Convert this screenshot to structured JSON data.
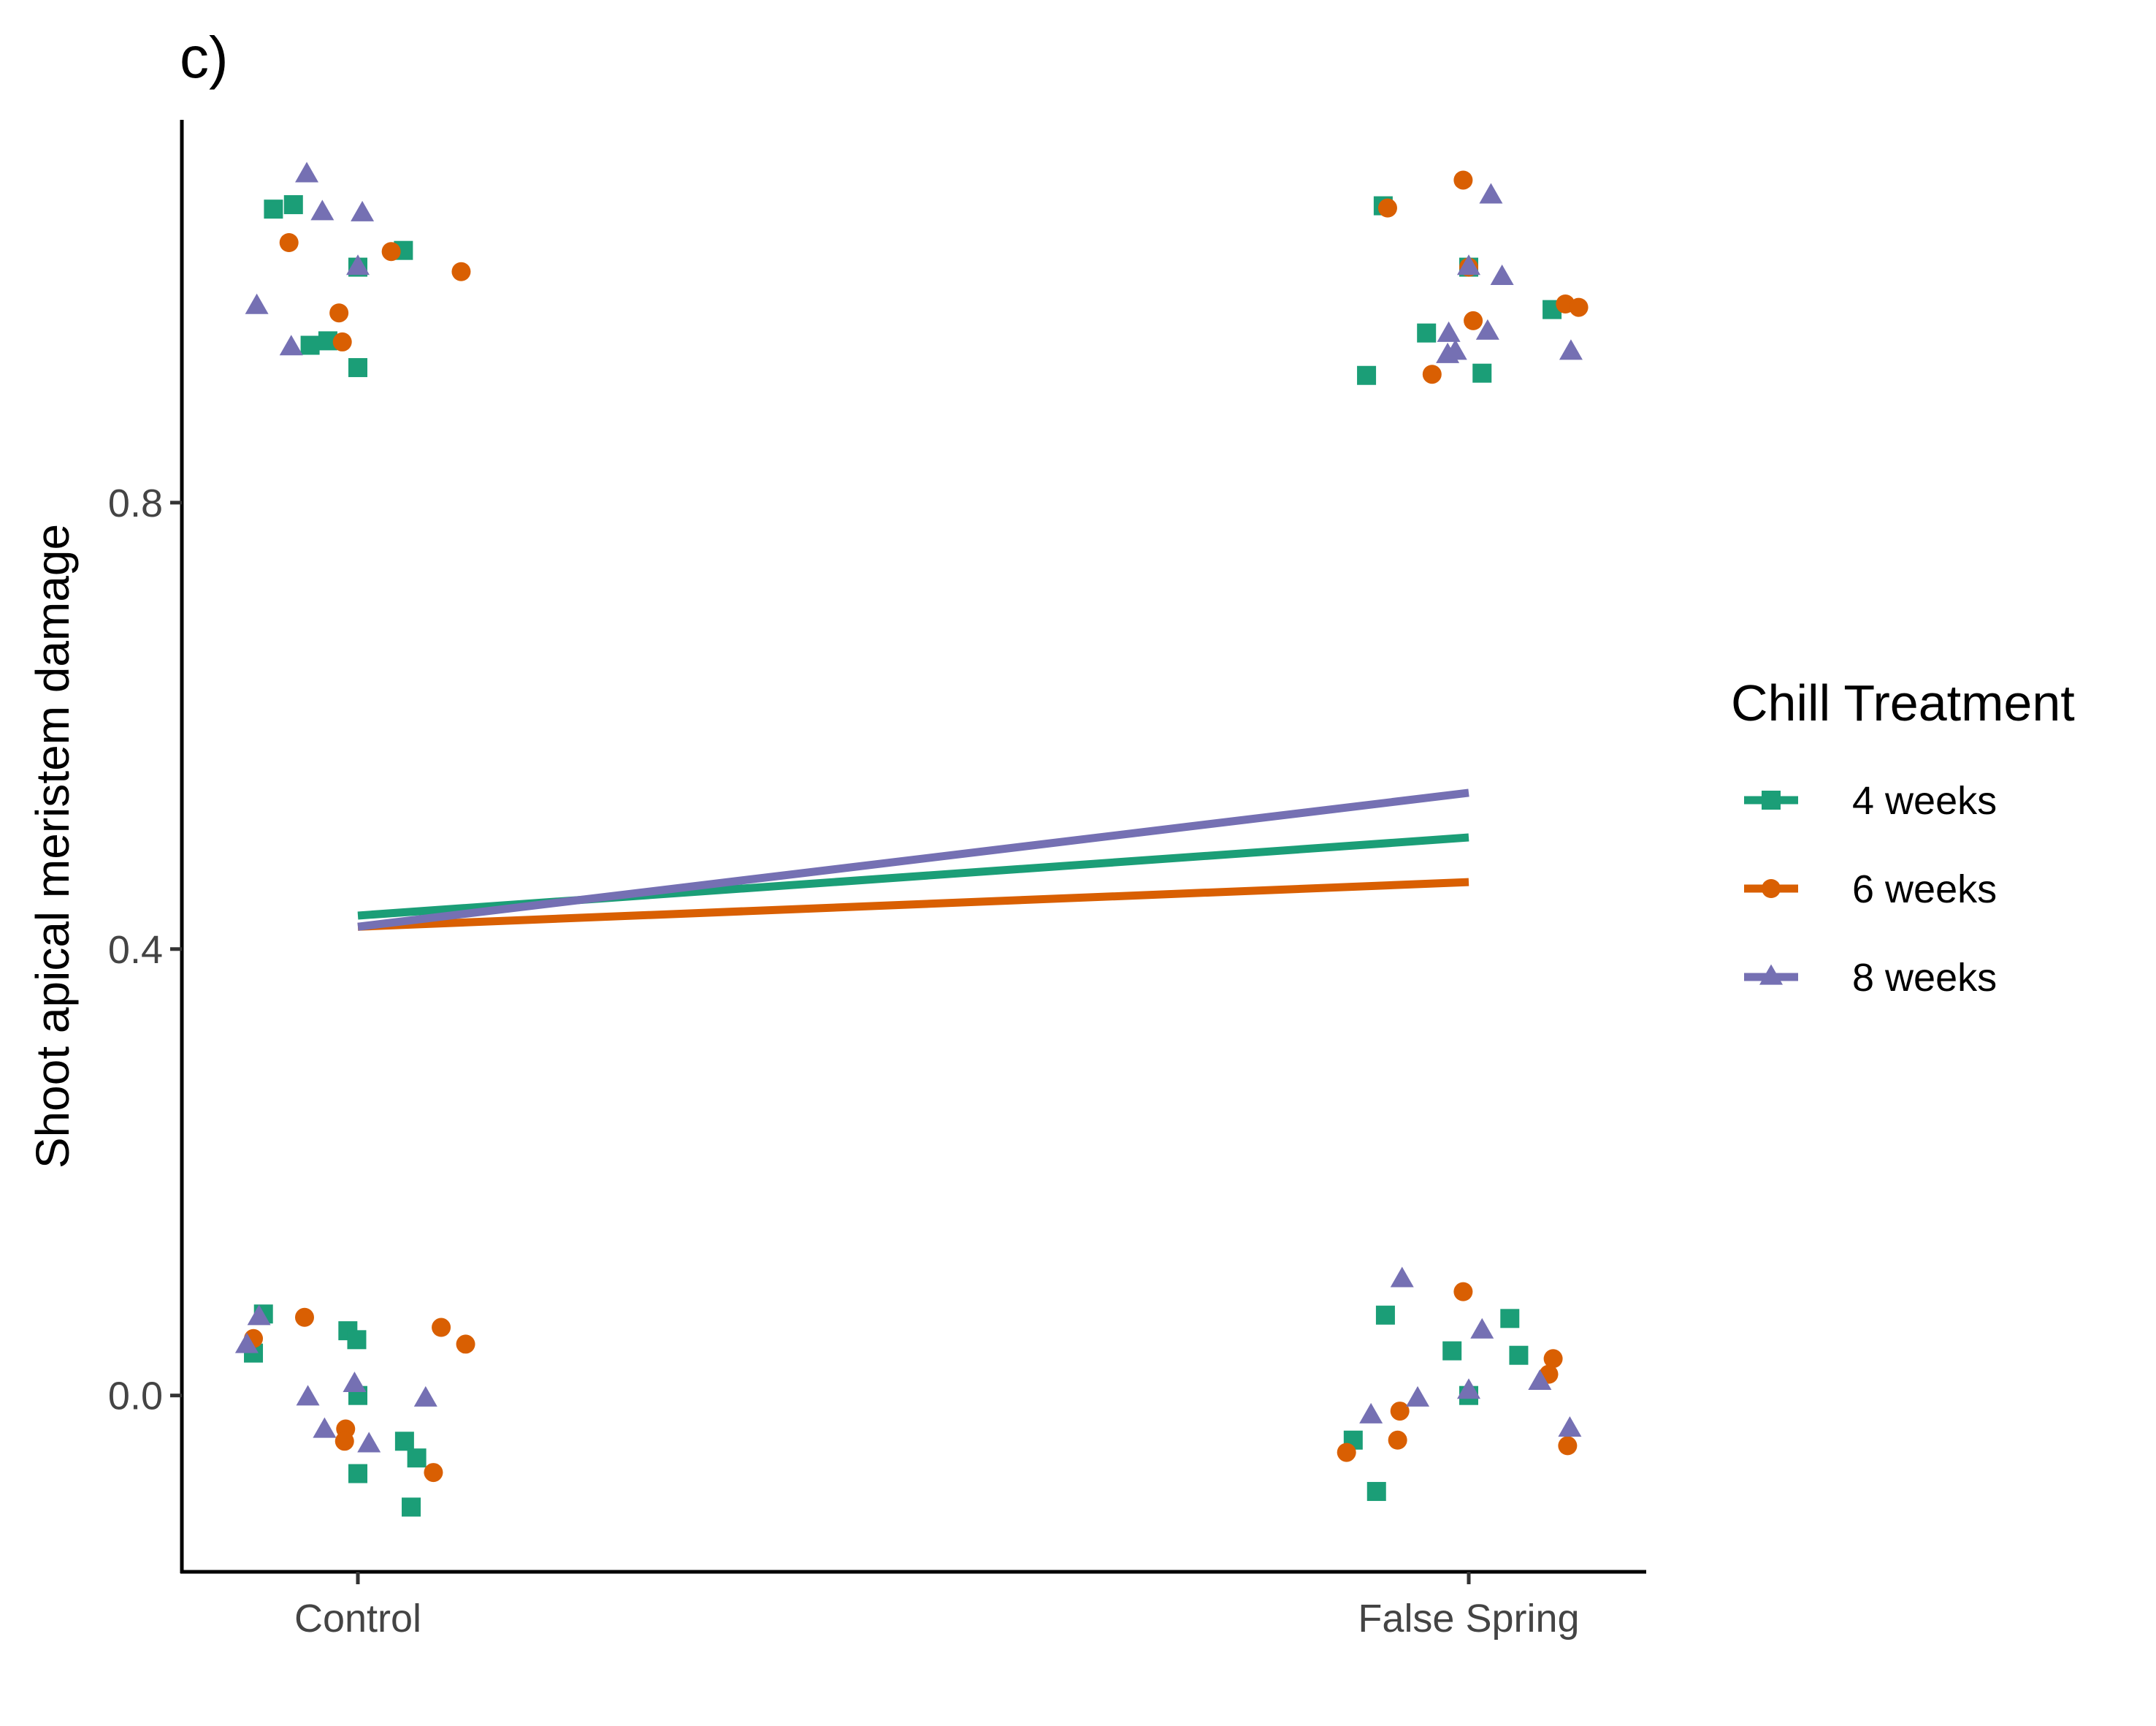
{
  "panel_label": "c)",
  "colors": {
    "4 weeks": "#1b9e77",
    "6 weeks": "#d95f02",
    "8 weeks": "#7570b3"
  },
  "legend": {
    "title": "Chill Treatment",
    "items": [
      {
        "label": "4 weeks",
        "shape": "square",
        "color": "#1b9e77"
      },
      {
        "label": "6 weeks",
        "shape": "circle",
        "color": "#d95f02"
      },
      {
        "label": "8 weeks",
        "shape": "triangle",
        "color": "#7570b3"
      }
    ]
  },
  "chart_data": {
    "type": "scatter",
    "title": "",
    "xlabel": "",
    "ylabel": "Shoot apical meristem damage",
    "categories": [
      "Control",
      "False Spring"
    ],
    "ylim": [
      -0.158,
      1.143
    ],
    "yticks": [
      0.0,
      0.4,
      0.8
    ],
    "ytick_labels": [
      "0.0",
      "0.4",
      "0.8"
    ],
    "grid": false,
    "legend_position": "right",
    "trend_lines": [
      {
        "name": "4 weeks",
        "values": [
          0.43,
          0.5
        ]
      },
      {
        "name": "6 weeks",
        "values": [
          0.42,
          0.46
        ]
      },
      {
        "name": "8 weeks",
        "values": [
          0.42,
          0.54
        ]
      }
    ],
    "series": [
      {
        "name": "4 weeks",
        "points": [
          {
            "x": -0.076,
            "y": 1.063
          },
          {
            "x": -0.058,
            "y": 1.067
          },
          {
            "x": -0.043,
            "y": 0.941
          },
          {
            "x": -0.027,
            "y": 0.945
          },
          {
            "x": 0.0,
            "y": 0.921
          },
          {
            "x": 0.0,
            "y": 1.011
          },
          {
            "x": 0.041,
            "y": 1.026
          },
          {
            "x": -0.094,
            "y": 0.038
          },
          {
            "x": -0.085,
            "y": 0.073
          },
          {
            "x": -0.009,
            "y": 0.058
          },
          {
            "x": -0.001,
            "y": 0.05
          },
          {
            "x": 0.0,
            "y": 0.0
          },
          {
            "x": 0.0,
            "y": -0.07
          },
          {
            "x": 0.042,
            "y": -0.041
          },
          {
            "x": 0.053,
            "y": -0.056
          },
          {
            "x": 0.048,
            "y": -0.1
          },
          {
            "x": 0.923,
            "y": 1.066
          },
          {
            "x": 0.962,
            "y": 0.952
          },
          {
            "x": 1.0,
            "y": 1.011
          },
          {
            "x": 0.908,
            "y": 0.914
          },
          {
            "x": 1.012,
            "y": 0.916
          },
          {
            "x": 1.075,
            "y": 0.973
          },
          {
            "x": 0.925,
            "y": 0.072
          },
          {
            "x": 0.985,
            "y": 0.04
          },
          {
            "x": 1.037,
            "y": 0.069
          },
          {
            "x": 1.045,
            "y": 0.036
          },
          {
            "x": 1.0,
            "y": 0.0
          },
          {
            "x": 0.896,
            "y": -0.04
          },
          {
            "x": 0.917,
            "y": -0.086
          }
        ]
      },
      {
        "name": "6 weeks",
        "points": [
          {
            "x": -0.062,
            "y": 1.033
          },
          {
            "x": 0.03,
            "y": 1.025
          },
          {
            "x": 0.093,
            "y": 1.007
          },
          {
            "x": -0.017,
            "y": 0.97
          },
          {
            "x": -0.014,
            "y": 0.944
          },
          {
            "x": -0.094,
            "y": 0.051
          },
          {
            "x": -0.048,
            "y": 0.07
          },
          {
            "x": 0.075,
            "y": 0.061
          },
          {
            "x": 0.097,
            "y": 0.046
          },
          {
            "x": -0.011,
            "y": -0.03
          },
          {
            "x": -0.012,
            "y": -0.041
          },
          {
            "x": 0.068,
            "y": -0.069
          },
          {
            "x": 0.995,
            "y": 1.089
          },
          {
            "x": 0.927,
            "y": 1.064
          },
          {
            "x": 1.0,
            "y": 1.011
          },
          {
            "x": 1.004,
            "y": 0.963
          },
          {
            "x": 0.967,
            "y": 0.915
          },
          {
            "x": 1.087,
            "y": 0.978
          },
          {
            "x": 1.099,
            "y": 0.975
          },
          {
            "x": 0.995,
            "y": 0.093
          },
          {
            "x": 1.076,
            "y": 0.033
          },
          {
            "x": 1.072,
            "y": 0.019
          },
          {
            "x": 0.938,
            "y": -0.014
          },
          {
            "x": 0.89,
            "y": -0.051
          },
          {
            "x": 0.936,
            "y": -0.04
          },
          {
            "x": 1.089,
            "y": -0.045
          }
        ]
      },
      {
        "name": "8 weeks",
        "points": [
          {
            "x": -0.046,
            "y": 1.094
          },
          {
            "x": -0.032,
            "y": 1.06
          },
          {
            "x": 0.004,
            "y": 1.059
          },
          {
            "x": -0.091,
            "y": 0.976
          },
          {
            "x": -0.06,
            "y": 0.939
          },
          {
            "x": 0.0,
            "y": 1.011
          },
          {
            "x": -0.1,
            "y": 0.045
          },
          {
            "x": -0.089,
            "y": 0.07
          },
          {
            "x": -0.045,
            "y": -0.002
          },
          {
            "x": -0.003,
            "y": 0.01
          },
          {
            "x": -0.03,
            "y": -0.031
          },
          {
            "x": 0.01,
            "y": -0.044
          },
          {
            "x": 0.061,
            "y": -0.003
          },
          {
            "x": 1.02,
            "y": 1.075
          },
          {
            "x": 1.0,
            "y": 1.011
          },
          {
            "x": 1.03,
            "y": 1.002
          },
          {
            "x": 0.982,
            "y": 0.951
          },
          {
            "x": 1.017,
            "y": 0.953
          },
          {
            "x": 0.981,
            "y": 0.932
          },
          {
            "x": 0.988,
            "y": 0.935
          },
          {
            "x": 1.092,
            "y": 0.935
          },
          {
            "x": 0.94,
            "y": 0.104
          },
          {
            "x": 1.012,
            "y": 0.058
          },
          {
            "x": 0.954,
            "y": -0.003
          },
          {
            "x": 0.912,
            "y": -0.018
          },
          {
            "x": 1.0,
            "y": 0.004
          },
          {
            "x": 1.064,
            "y": 0.012
          },
          {
            "x": 1.091,
            "y": -0.03
          }
        ]
      }
    ]
  }
}
